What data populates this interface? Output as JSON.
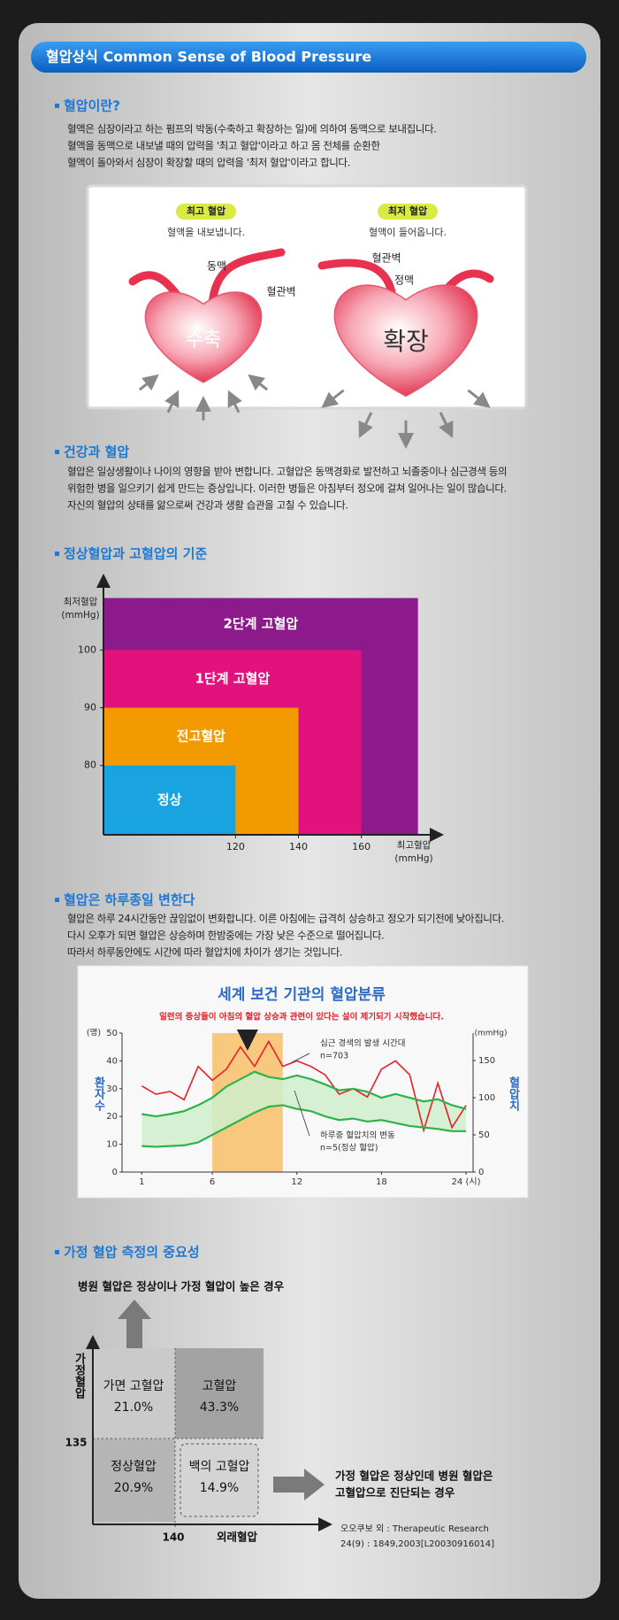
{
  "header": {
    "title": "혈압상식 Common Sense of  Blood Pressure"
  },
  "sections": [
    {
      "heading": "혈압이란?",
      "lines": [
        "혈액은 심장이라고 하는 펌프의 박동(수축하고 확장하는 일)에 의하여 동맥으로 보내집니다.",
        "혈액을 동맥으로 내보낼 때의 압력을 '최고 혈압'이라고 하고 몸 전체를 순환한",
        "혈액이 돌아와서 심장이 확장할 때의 압력을 '최저 혈압'이라고 합니다."
      ]
    },
    {
      "heading": "건강과 혈압",
      "lines": [
        "혈압은 일상생활이나 나이의 영향을 받아 변합니다. 고혈압은 동맥경화로 발전하고 뇌졸중이나 심근경색 등의",
        "위험한 병을 일으키기 쉽게 만드는 증상입니다. 이러한 병들은 아침부터 정오에 걸쳐 일어나는 일이 많습니다.",
        "자신의 혈압의 상태를 앎으로써 건강과 생활 습관을 고칠 수 있습니다."
      ]
    },
    {
      "heading": "정상혈압과 고혈압의 기준"
    },
    {
      "heading": "혈압은 하루종일 변한다",
      "lines": [
        "혈압은 하루 24시간동안 끊임없이 변화합니다. 이른 아침에는 급격히 상승하고 정오가 되기전에 낮아집니다.",
        "다시 오후가 되면 혈압은 상승하며 한밤중에는 가장 낮은 수준으로 떨어집니다.",
        "따라서 하루동안에도 시간에 따라 혈압치에 차이가 생기는 것입니다."
      ]
    },
    {
      "heading": "가정 혈압 측정의 중요성"
    }
  ],
  "heart_diagram": {
    "left": {
      "badge": "최고 혈압",
      "caption": "혈액을 내보냅니다.",
      "labels": [
        "동맥",
        "혈관벽"
      ],
      "center": "수축"
    },
    "right": {
      "badge": "최저 혈압",
      "caption": "혈액이 들어옵니다.",
      "labels": [
        "혈관벽",
        "정맥"
      ],
      "center": "확장"
    }
  },
  "chart_data": [
    {
      "type": "region",
      "y_label": [
        "최저혈압",
        "(mmHg)"
      ],
      "x_label": [
        "최고혈압",
        "(mmHg)"
      ],
      "xlim": [
        78,
        184
      ],
      "ylim": [
        68,
        112
      ],
      "xticks": [
        120,
        140,
        160
      ],
      "yticks": [
        80,
        90,
        100
      ],
      "regions": [
        {
          "name": "2단계 고혈압",
          "color": "#8c1a8b",
          "x": 178,
          "y": 109
        },
        {
          "name": "1단계 고혈압",
          "color": "#e2127c",
          "x": 160,
          "y": 100
        },
        {
          "name": "전고혈압",
          "color": "#f39a00",
          "x": 140,
          "y": 90
        },
        {
          "name": "정상",
          "color": "#19a3e0",
          "x": 120,
          "y": 80
        }
      ]
    },
    {
      "type": "line",
      "title": "세계 보건 기관의 혈압분류",
      "subtitle": "일련의 증상들이 아침의 혈압 상승과 관련이 있다는 설이 제기되기 시작했습니다.",
      "y_unit": "(명)",
      "y2_unit": "(mmHg)",
      "ylabel": "환자수",
      "y2label": "혈압치",
      "x": [
        1,
        2,
        3,
        4,
        5,
        6,
        7,
        8,
        9,
        10,
        11,
        12,
        13,
        14,
        15,
        16,
        17,
        18,
        19,
        20,
        21,
        22,
        23,
        24
      ],
      "xlim": [
        -0.4,
        24.5
      ],
      "xticks": [
        1,
        6,
        12,
        18,
        {
          "value": 24,
          "label": "24 (시)"
        }
      ],
      "ylim": [
        0,
        50
      ],
      "yticks": [
        0,
        10,
        20,
        30,
        40,
        50
      ],
      "y2lim": [
        0,
        187
      ],
      "y2ticks": [
        0,
        50,
        100,
        150
      ],
      "highlight": [
        6,
        11
      ],
      "annotations": [
        [
          "심근 경색의 발생 시간대",
          "n=703"
        ],
        [
          "하루중 혈압치의 변동",
          "n=5(정상 혈압)"
        ]
      ],
      "series": [
        {
          "color": "#e8202a",
          "values": [
            31,
            28,
            29,
            26,
            38,
            33,
            37,
            45,
            38,
            47,
            38,
            40,
            38,
            35,
            28,
            30,
            27,
            37,
            40,
            35,
            15,
            32,
            16,
            24
          ]
        },
        {
          "color": "#2db34a",
          "axis": "y2",
          "values": [
            78,
            75,
            78,
            82,
            90,
            100,
            115,
            125,
            135,
            128,
            125,
            130,
            125,
            118,
            110,
            112,
            108,
            100,
            105,
            100,
            95,
            98,
            90,
            85
          ]
        },
        {
          "color": "#2db34a",
          "axis": "y2",
          "values": [
            35,
            34,
            35,
            36,
            40,
            50,
            60,
            70,
            80,
            88,
            90,
            85,
            82,
            75,
            70,
            72,
            68,
            70,
            66,
            62,
            60,
            58,
            55,
            55
          ]
        }
      ]
    }
  ],
  "home_bp": {
    "top_caption": "병원 혈압은 정상이나 가정 혈압이 높은 경우",
    "y_label": "가정혈압",
    "x_label": "외래혈압",
    "y_threshold": "135",
    "x_threshold": "140",
    "quadrants": [
      [
        "가면 고혈압",
        "21.0%"
      ],
      [
        "고혈압",
        "43.3%"
      ],
      [
        "정상혈압",
        "20.9%"
      ],
      [
        "백의 고혈압",
        "14.9%"
      ]
    ],
    "right_caption": [
      "가정 혈압은 정상인데 병원 혈압은",
      "고혈압으로 진단되는 경우"
    ],
    "source": [
      "오오쿠보 외 : Therapeutic Research",
      "24(9) : 1849,2003[L20030916014]"
    ]
  }
}
